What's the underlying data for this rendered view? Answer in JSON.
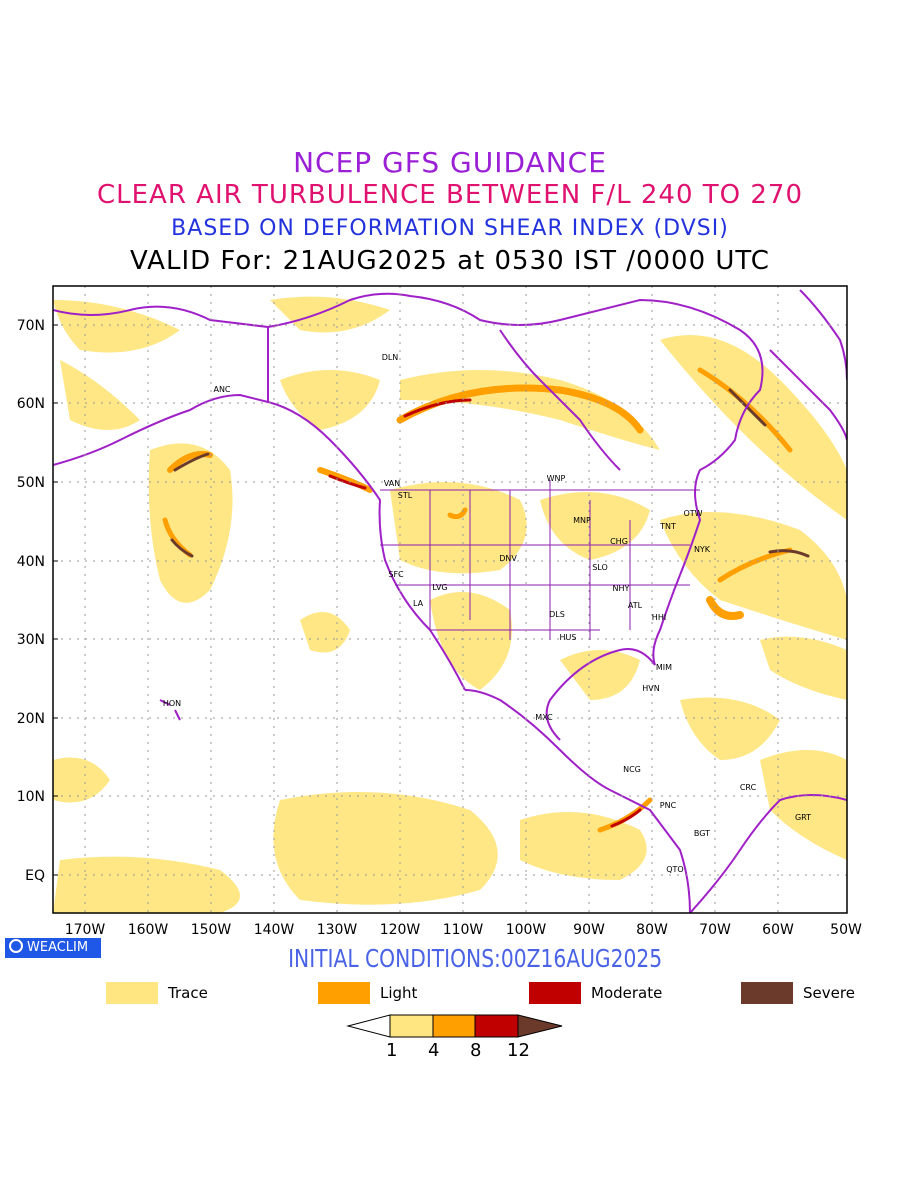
{
  "titles": {
    "line1": "NCEP GFS GUIDANCE",
    "line2": "CLEAR AIR TURBULENCE BETWEEN F/L 240 TO 270",
    "line3": "BASED ON DEFORMATION SHEAR INDEX (DVSI)",
    "line4": "VALID For: 21AUG2025 at 0530 IST /0000 UTC"
  },
  "initial_conditions": "INITIAL CONDITIONS:00Z16AUG2025",
  "badge": "WEACLIM",
  "lat_labels": [
    "70N",
    "60N",
    "50N",
    "40N",
    "30N",
    "20N",
    "10N",
    "EQ"
  ],
  "lon_labels": [
    "170W",
    "160W",
    "150W",
    "140W",
    "130W",
    "120W",
    "110W",
    "100W",
    "90W",
    "80W",
    "70W",
    "60W",
    "50W"
  ],
  "cities": [
    "DLN",
    "ANC",
    "VAN",
    "STL",
    "WNP",
    "MNP",
    "TNT",
    "OTW",
    "CHG",
    "NYK",
    "DNV",
    "SFC",
    "SLO",
    "LVG",
    "NHY",
    "LA",
    "ATL",
    "DLS",
    "HHI",
    "HUS",
    "MIM",
    "HON",
    "HVN",
    "MXC",
    "NCG",
    "CRC",
    "PNC",
    "GRT",
    "BGT",
    "QTO"
  ],
  "legend": [
    {
      "label": "Trace",
      "color": "#ffe680"
    },
    {
      "label": "Light",
      "color": "#ff9f00"
    },
    {
      "label": "Moderate",
      "color": "#c00000"
    },
    {
      "label": "Severe",
      "color": "#6b3a2a"
    }
  ],
  "colorbar_levels": [
    "1",
    "4",
    "8",
    "12"
  ],
  "colors": {
    "coast": "#a020c8",
    "title1": "#9a1fd6",
    "title2": "#e0116f",
    "title3": "#2233dd"
  }
}
